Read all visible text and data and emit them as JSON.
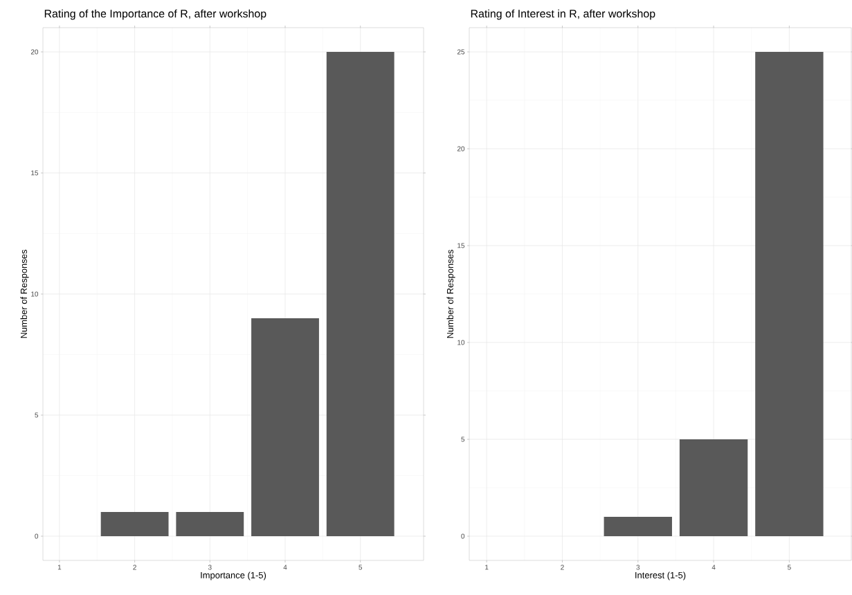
{
  "chart_data": [
    {
      "type": "bar",
      "title": "Rating of the Importance of R, after workshop",
      "xlabel": "Importance (1-5)",
      "ylabel": "Number of Responses",
      "x": [
        2,
        3,
        4,
        5
      ],
      "values": [
        1,
        1,
        9,
        20
      ],
      "color": "#595959",
      "xlim": [
        0.78,
        5.84
      ],
      "ylim": [
        -1,
        21
      ],
      "xticks": [
        1,
        2,
        3,
        4,
        5
      ],
      "yticks": [
        0,
        5,
        10,
        15,
        20
      ],
      "grid": true
    },
    {
      "type": "bar",
      "title": "Rating of Interest in R, after workshop",
      "xlabel": "Interest (1-5)",
      "ylabel": "Number of Responses",
      "x": [
        3,
        4,
        5
      ],
      "values": [
        1,
        5,
        25
      ],
      "color": "#595959",
      "xlim": [
        0.77,
        5.82
      ],
      "ylim": [
        -1.25,
        26.25
      ],
      "xticks": [
        1,
        2,
        3,
        4,
        5
      ],
      "yticks": [
        0,
        5,
        10,
        15,
        20,
        25
      ],
      "grid": true
    }
  ]
}
